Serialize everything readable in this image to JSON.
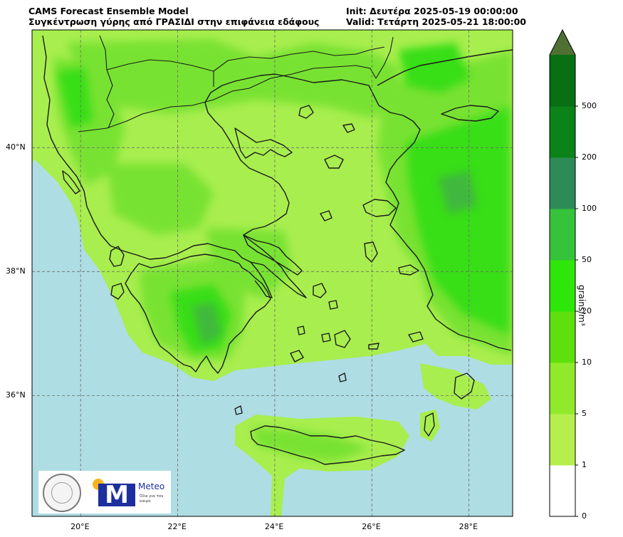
{
  "header": {
    "model_title": "CAMS Forecast Ensemble Model",
    "variable_title": "Συγκέντρωση γύρης από ΓΡΑΣΙΔΙ στην επιφάνεια εδάφους",
    "init": "Init: Δευτέρα 2025-05-19 00:00:00",
    "valid": "Valid: Τετάρτη 2025-05-21 18:00:00"
  },
  "map": {
    "lon_labels": [
      "20°E",
      "22°E",
      "24°E",
      "26°E",
      "28°E"
    ],
    "lat_labels": [
      "40°N",
      "38°N",
      "36°N"
    ],
    "extent": {
      "lon": [
        19,
        28.9
      ],
      "lat": [
        34.05,
        41.9
      ]
    }
  },
  "colorbar": {
    "unit": "grains/m³",
    "levels": [
      "0",
      "1",
      "5",
      "10",
      "20",
      "50",
      "100",
      "200",
      "500"
    ],
    "colors": [
      "#ffffff",
      "#b6ef4d",
      "#90ea2b",
      "#5fe00e",
      "#2ee60a",
      "#35c33b",
      "#2e8b57",
      "#0b8318",
      "#086f12",
      "#056012",
      "#4f7033"
    ],
    "extend": "max"
  },
  "palette": {
    "sea": "#aedde3",
    "land_low": "#a8ee4e",
    "land_mid": "#78e233",
    "land_high": "#39de15",
    "land_peak": "#3fb83d",
    "coast": "#1a1a1a",
    "grid": "#6a6a6a"
  },
  "logos": {
    "seal_icon": "university-seal-icon",
    "meteo_letter": "M",
    "meteo_word": "Meteo",
    "meteo_tagline": "Όλα για τον καιρό"
  }
}
